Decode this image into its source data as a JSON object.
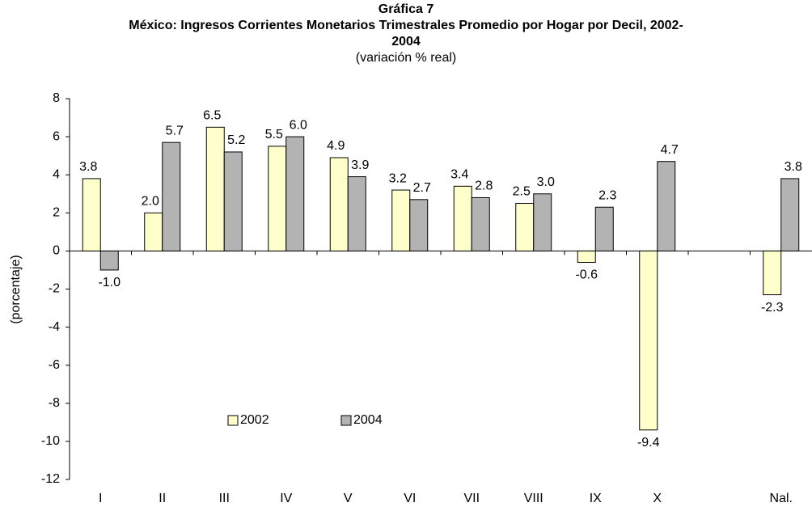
{
  "chart_data": {
    "type": "bar",
    "title": "Gráfica 7",
    "subtitle": "México: Ingresos Corrientes Monetarios Trimestrales Promedio por Hogar por Decil, 2002-2004",
    "note": "(variación % real)",
    "y_label": "(porcentaje)",
    "categories": [
      "I",
      "II",
      "III",
      "IV",
      "V",
      "VI",
      "VII",
      "VIII",
      "IX",
      "X",
      null,
      "Nal."
    ],
    "series": [
      {
        "name": "2002",
        "color": "#ffffcc",
        "values": [
          3.8,
          2,
          6.5,
          5.5,
          4.9,
          3.2,
          3.4,
          2.5,
          -0.6,
          -9.4,
          null,
          -2.3
        ],
        "value_labels": [
          "3.8",
          "2.0",
          "6.5",
          "5.5",
          "4.9",
          "3.2",
          "3.4",
          "2.5",
          "-0.6",
          "-9.4",
          null,
          "-2.3"
        ]
      },
      {
        "name": "2004",
        "color": "#b3b3b3",
        "values": [
          -1,
          5.7,
          5.2,
          6,
          3.9,
          2.7,
          2.8,
          3,
          2.3,
          4.7,
          null,
          3.8
        ],
        "value_labels": [
          "-1.0",
          "5.7",
          "5.2",
          "6.0",
          "3.9",
          "2.7",
          "2.8",
          "3.0",
          "2.3",
          "4.7",
          null,
          "3.8"
        ]
      }
    ],
    "ylim": [
      -12,
      8
    ],
    "yticks": [
      -12,
      -10,
      -8,
      -6,
      -4,
      -2,
      0,
      2,
      4,
      6,
      8
    ],
    "grid": false
  }
}
